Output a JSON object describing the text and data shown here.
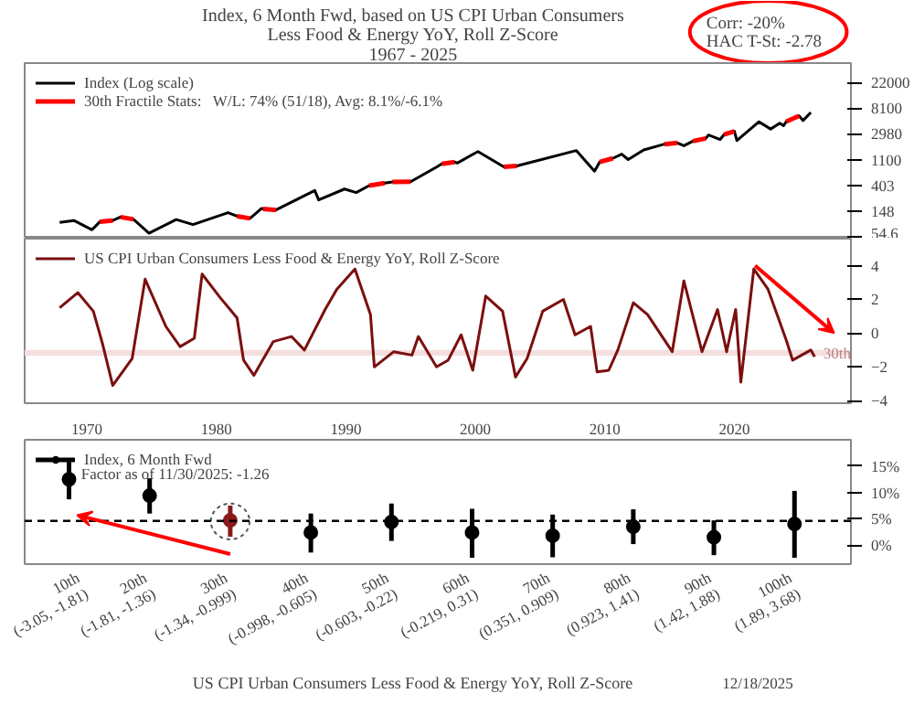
{
  "chart_data": [
    {
      "type": "line",
      "title": "Index, 6 Month Fwd, based on US CPI Urban Consumers Less Food & Energy YoY, Roll Z-Score",
      "subtitle": "1967 - 2025",
      "annotations": [
        "Corr: -20%",
        "HAC T-St: -2.78"
      ],
      "log": true,
      "xlim": [
        1965.2,
        2029
      ],
      "ylim": [
        51,
        46600
      ],
      "tick_labels": "y",
      "legend": "top left",
      "yticks": [
        54.6,
        148,
        403,
        1100,
        2980,
        8100,
        22000
      ],
      "series": [
        {
          "name": "Index (Log scale)",
          "color": "#000000",
          "x": [
            1967.9,
            1969.0,
            1970.4,
            1971.0,
            1972.0,
            1972.6,
            1973.6,
            1974.8,
            1976.9,
            1978.2,
            1980.9,
            1981.6,
            1982.6,
            1983.5,
            1983.6,
            1984.6,
            1987.6,
            1987.9,
            1989.9,
            1990.8,
            1991.8,
            1993.0,
            1993.6,
            1995.0,
            1997.0,
            1997.4,
            1998.4,
            1998.6,
            2000.2,
            2002.2,
            2003.2,
            2007.8,
            2009.2,
            2009.6,
            2010.6,
            2011.3,
            2011.8,
            2013.0,
            2014.6,
            2015.6,
            2016.1,
            2016.8,
            2017.8,
            2018.0,
            2018.9,
            2019.2,
            2020.0,
            2020.2,
            2021.9,
            2022.8,
            2023.5,
            2023.8,
            2024.0,
            2025.0,
            2025.3,
            2025.9
          ],
          "values": [
            96,
            103,
            72,
            98,
            103,
            118,
            108,
            63,
            107,
            88,
            140,
            122,
            112,
            165,
            162,
            155,
            330,
            230,
            350,
            305,
            400,
            440,
            460,
            465,
            820,
            930,
            1000,
            960,
            1500,
            830,
            860,
            1560,
            700,
            1000,
            1150,
            1360,
            1100,
            1600,
            2000,
            2100,
            1880,
            2250,
            2500,
            2850,
            2400,
            2900,
            3300,
            2300,
            4770,
            3600,
            4500,
            4100,
            4800,
            6000,
            5000,
            6850
          ]
        },
        {
          "name": "30th Fractile Stats:   W/L: 74% (51/18), Avg: 8.1%/-6.1%",
          "color": "#ff0000",
          "x": [
            1971.0,
            1972.0,
            1972.3,
            1972.6,
            1973.6,
            1977.0,
            1981.6,
            1982.6,
            1983.0,
            1983.6,
            1984.6,
            1988.0,
            1991.8,
            1993.0,
            1993.3,
            1993.6,
            1995.0,
            1996.0,
            1997.4,
            1998.4,
            2000.0,
            2002.2,
            2003.2,
            2005.0,
            2009.6,
            2010.6,
            2012.0,
            2014.6,
            2015.6,
            2016.3,
            2016.8,
            2017.8,
            2018.5,
            2019.2,
            2020.0,
            2022.0,
            2024.0,
            2025.0
          ],
          "values": [
            98,
            103,
            null,
            118,
            108,
            null,
            122,
            112,
            null,
            162,
            155,
            null,
            400,
            440,
            null,
            460,
            465,
            null,
            930,
            1000,
            null,
            830,
            860,
            null,
            1000,
            1150,
            null,
            2000,
            2100,
            null,
            2250,
            2500,
            null,
            2900,
            3300,
            null,
            4800,
            6000
          ]
        }
      ]
    },
    {
      "type": "line",
      "xlim": [
        1965.2,
        2029
      ],
      "ylim": [
        -4.15,
        5.6
      ],
      "xticks": [
        1970,
        1980,
        1990,
        2000,
        2010,
        2020
      ],
      "yticks": [
        -4,
        -2,
        0,
        2,
        4
      ],
      "legend": "top left",
      "bands": [
        {
          "axis": "y",
          "from": -1.34,
          "to": -0.999,
          "label": "30th",
          "color": "#f4dede"
        }
      ],
      "series": [
        {
          "name": "US CPI Urban Consumers Less Food & Energy YoY, Roll Z-Score",
          "color": "#7b0f0f",
          "x": [
            1967.9,
            1969.3,
            1970.5,
            1971.2,
            1972.0,
            1973.5,
            1974.5,
            1976.1,
            1977.2,
            1978.3,
            1978.9,
            1980.3,
            1981.6,
            1982.1,
            1982.9,
            1984.4,
            1985.8,
            1986.8,
            1988.4,
            1989.3,
            1990.7,
            1991.9,
            1992.2,
            1993.7,
            1995.1,
            1995.6,
            1997.0,
            1997.9,
            1998.9,
            1999.8,
            2000.8,
            2002.1,
            2003.1,
            2004.0,
            2005.2,
            2006.8,
            2007.7,
            2008.9,
            2009.4,
            2010.3,
            2011.0,
            2012.2,
            2013.3,
            2015.2,
            2016.1,
            2017.5,
            2018.7,
            2019.4,
            2020.1,
            2020.5,
            2021.5,
            2022.6,
            2024.0,
            2024.5,
            2025.9,
            2026.2
          ],
          "values": [
            1.5,
            2.4,
            1.3,
            -0.6,
            -3.1,
            -1.5,
            3.2,
            0.4,
            -0.8,
            -0.3,
            3.5,
            2.1,
            0.9,
            -1.6,
            -2.5,
            -0.5,
            -0.2,
            -1.0,
            1.4,
            2.6,
            3.8,
            1.1,
            -2.0,
            -1.1,
            -1.3,
            -0.2,
            -2.0,
            -1.6,
            -0.1,
            -2.2,
            2.2,
            1.3,
            -2.6,
            -1.5,
            1.3,
            2.0,
            -0.1,
            0.4,
            -2.3,
            -2.2,
            -1.0,
            1.8,
            1.1,
            -1.1,
            3.1,
            -1.1,
            1.4,
            -1.1,
            1.4,
            -2.9,
            3.8,
            2.6,
            -0.4,
            -1.6,
            -1.0,
            -1.4
          ]
        }
      ]
    },
    {
      "type": "scatter",
      "xlabel": "US CPI Urban Consumers Less Food & Energy YoY, Roll Z-Score",
      "annotations": [
        "Factor as of 11/30/2025: -1.26",
        "12/18/2025"
      ],
      "categories": [
        "10th\n(-3.05, -1.81)",
        "20th\n(-1.81, -1.36)",
        "30th\n(-1.34, -0.999)",
        "40th\n(-0.998, -0.605)",
        "50th\n(-0.603, -0.22)",
        "60th\n(-0.219, 0.31)",
        "70th\n(0.351, 0.909)",
        "80th\n(0.923, 1.41)",
        "90th\n(1.42, 1.88)",
        "100th\n(1.89, 3.68)"
      ],
      "ylim": [
        -3.6,
        20
      ],
      "yticks": [
        {
          "value": 0,
          "label": "0%"
        },
        {
          "value": 5,
          "label": "5%"
        },
        {
          "value": 10,
          "label": "10%"
        },
        {
          "value": 15,
          "label": "15%"
        }
      ],
      "legend": "top left",
      "marker": "circle",
      "ref_lines": [
        {
          "axis": "y",
          "value": 4.6,
          "line_style": "dashed",
          "color": "#000000"
        }
      ],
      "series": [
        {
          "name": "Index, 6 Month Fwd",
          "color": "#000000",
          "colors": [
            "#000000",
            "#000000",
            "#8b1a1a",
            "#000000",
            "#000000",
            "#000000",
            "#000000",
            "#000000",
            "#000000",
            "#000000"
          ],
          "values": [
            12.5,
            9.4,
            4.7,
            2.4,
            4.4,
            2.4,
            1.8,
            3.5,
            1.5,
            4.0
          ],
          "errors": [
            [
              8.7,
              16.1
            ],
            [
              6.0,
              12.7
            ],
            [
              1.6,
              7.5
            ],
            [
              -1.4,
              6.0
            ],
            [
              0.8,
              7.9
            ],
            [
              -2.4,
              6.9
            ],
            [
              -2.3,
              5.8
            ],
            [
              0.2,
              6.8
            ],
            [
              -1.9,
              4.7
            ],
            [
              -2.4,
              10.3
            ]
          ]
        }
      ]
    }
  ]
}
